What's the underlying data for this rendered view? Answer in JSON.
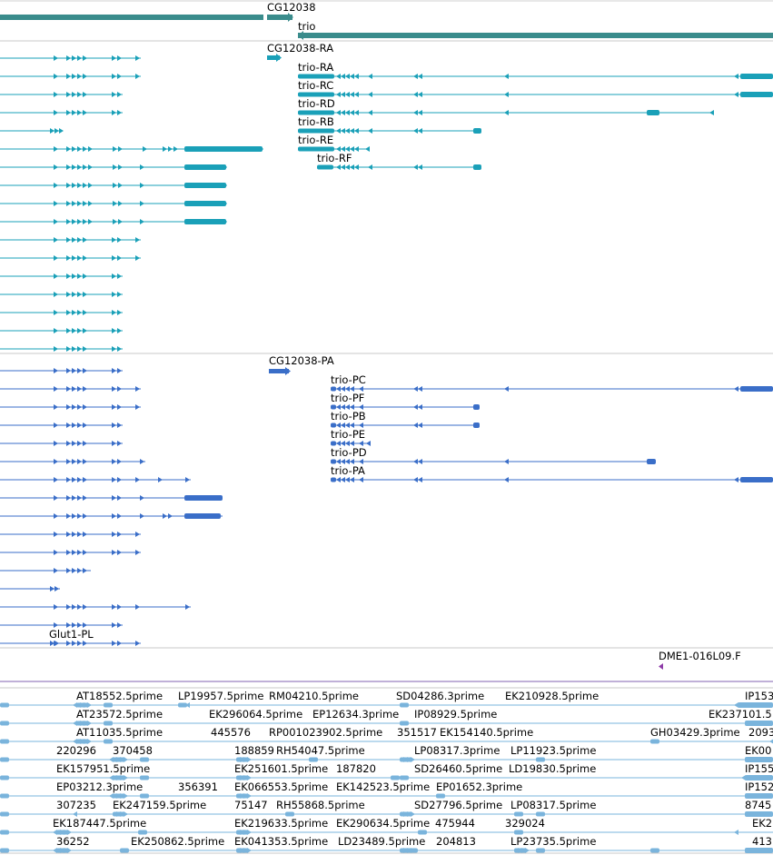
{
  "colors": {
    "gene": "#3a8c8c",
    "flybase_transcript": "#1aa0b8",
    "refseq_transcript": "#3a6ec8",
    "est": "#7ab4dc",
    "probe": "#8e3ba8",
    "divider": "#c8c8c8",
    "track_divider_accent": "#8060b0",
    "label": "#000000"
  },
  "tracks": {
    "genes": {
      "labels": [
        "CG12038",
        "trio"
      ]
    },
    "flybase_transcripts": {
      "labels": [
        "CG12038-RA",
        "trio-RA",
        "trio-RC",
        "trio-RD",
        "trio-RB",
        "trio-RE",
        "trio-RF"
      ]
    },
    "refseq_transcripts": {
      "labels": [
        "CG12038-PA",
        "trio-PC",
        "trio-PF",
        "trio-PB",
        "trio-PE",
        "trio-PD",
        "trio-PA",
        "Glut1-PL"
      ]
    },
    "probes": {
      "labels": [
        "DME1-016L09.F"
      ]
    },
    "est_alignments": {
      "labels": [
        "AT18552.5prime",
        "LP19957.5prime",
        "RM04210.5prime",
        "SD04286.3prime",
        "EK210928.5prime",
        "IP153",
        "AT23572.5prime",
        "EK296064.5prime",
        "EP12634.3prime",
        "IP08929.5prime",
        "EK237101.5",
        "AT11035.5prime",
        "445576",
        "RP001023902.5prime",
        "351517",
        "EK154140.5prime",
        "GH03429.3prime",
        "2093",
        "220296",
        "370458",
        "188859",
        "RH54047.5prime",
        "LP08317.3prime",
        "LP11923.5prime",
        "EK00",
        "EK157951.5prime",
        "EK251601.5prime",
        "187820",
        "SD26460.5prime",
        "LD19830.5prime",
        "IP155",
        "EP03212.3prime",
        "356391",
        "EK066553.5prime",
        "EK142523.5prime",
        "EP01652.3prime",
        "IP152",
        "307235",
        "EK247159.5prime",
        "75147",
        "RH55868.5prime",
        "SD27796.5prime",
        "LP08317.5prime",
        "8745",
        "EK187447.5prime",
        "EK219633.5prime",
        "EK290634.5prime",
        "475944",
        "329024",
        "EK2",
        "36252",
        "EK250862.5prime",
        "EK041353.5prime",
        "LD23489.5prime",
        "204813",
        "LP23735.5prime",
        "413"
      ]
    }
  }
}
